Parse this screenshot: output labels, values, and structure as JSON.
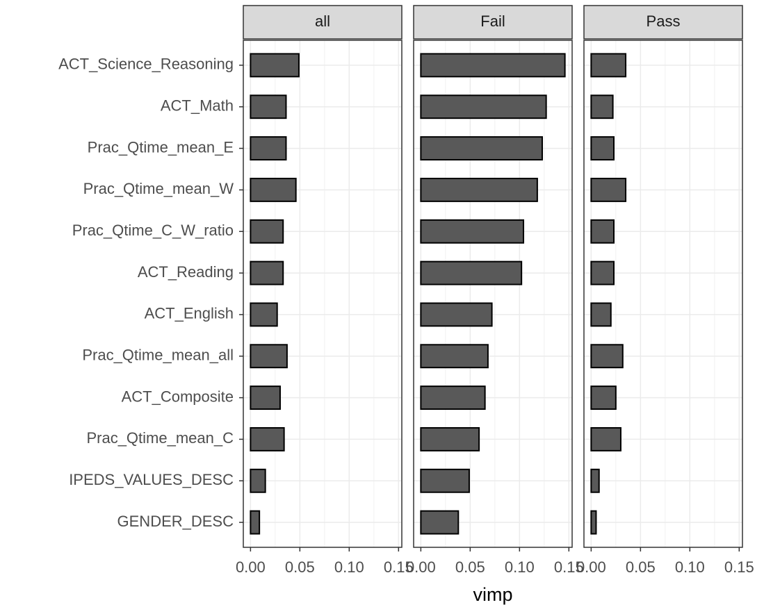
{
  "chart_data": {
    "type": "bar",
    "orientation": "horizontal",
    "xlabel": "vimp",
    "categories": [
      "ACT_Science_Reasoning",
      "ACT_Math",
      "Prac_Qtime_mean_E",
      "Prac_Qtime_mean_W",
      "Prac_Qtime_C_W_ratio",
      "ACT_Reading",
      "ACT_English",
      "Prac_Qtime_mean_all",
      "ACT_Composite",
      "Prac_Qtime_mean_C",
      "IPEDS_VALUES_DESC",
      "GENDER_DESC"
    ],
    "series": [
      {
        "name": "all",
        "values": [
          0.049,
          0.036,
          0.036,
          0.046,
          0.033,
          0.033,
          0.027,
          0.037,
          0.03,
          0.034,
          0.015,
          0.009
        ]
      },
      {
        "name": "Fail",
        "values": [
          0.146,
          0.127,
          0.123,
          0.118,
          0.104,
          0.102,
          0.072,
          0.068,
          0.065,
          0.059,
          0.049,
          0.038
        ]
      },
      {
        "name": "Pass",
        "values": [
          0.035,
          0.022,
          0.023,
          0.035,
          0.023,
          0.023,
          0.02,
          0.032,
          0.025,
          0.03,
          0.008,
          0.005
        ]
      }
    ],
    "color": "#595959",
    "xlim": [
      -0.0073,
      0.1533
    ],
    "xticks": [
      {
        "value": 0,
        "label": "0.00"
      },
      {
        "value": 0.05,
        "label": "0.05"
      },
      {
        "value": 0.1,
        "label": "0.10"
      },
      {
        "value": 0.15,
        "label": "0.15"
      }
    ],
    "grid": true
  }
}
